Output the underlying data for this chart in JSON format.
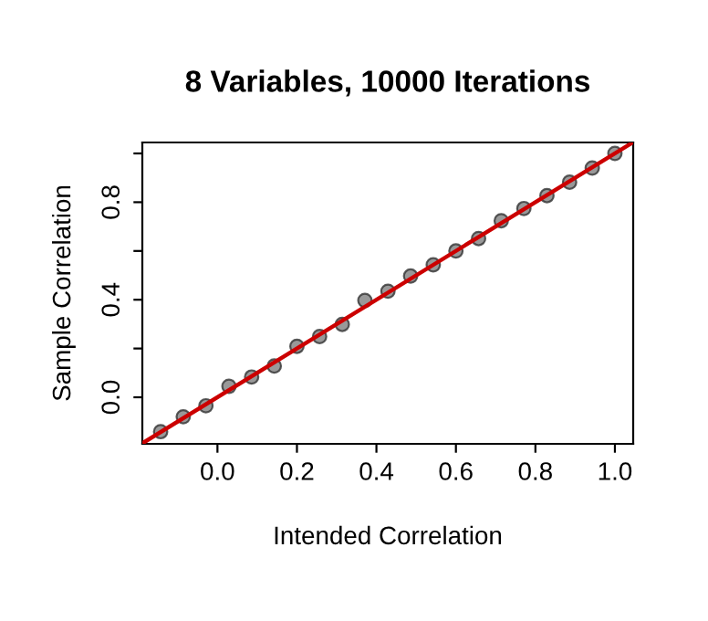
{
  "chart_data": {
    "type": "scatter",
    "title": "8 Variables, 10000 Iterations",
    "xlabel": "Intended Correlation",
    "ylabel": "Sample Correlation",
    "xlim": [
      -0.189,
      1.046
    ],
    "ylim": [
      -0.191,
      1.045
    ],
    "xticks": [
      {
        "value": 0,
        "label": "0.0"
      },
      0.2,
      0.4,
      0.6,
      0.8,
      {
        "value": 1,
        "label": "1.0"
      }
    ],
    "yticks": [
      {
        "value": 0,
        "label": "0.0"
      },
      {
        "value": 0.2,
        "label": null
      },
      0.4,
      {
        "value": 0.6,
        "label": null
      },
      0.8,
      {
        "value": 1.0,
        "label": null
      }
    ],
    "grid": false,
    "legend": false,
    "series": [
      {
        "marker": "circle",
        "color": "#808080",
        "x": [
          -0.143,
          -0.086,
          -0.029,
          0.029,
          0.086,
          0.143,
          0.2,
          0.257,
          0.314,
          0.371,
          0.429,
          0.486,
          0.543,
          0.6,
          0.657,
          0.714,
          0.771,
          0.829,
          0.886,
          0.943,
          1.0
        ],
        "values": [
          -0.141,
          -0.08,
          -0.035,
          0.045,
          0.083,
          0.128,
          0.209,
          0.249,
          0.299,
          0.397,
          0.435,
          0.497,
          0.543,
          0.6,
          0.651,
          0.724,
          0.774,
          0.827,
          0.882,
          0.94,
          1.0
        ]
      },
      {
        "type": "line",
        "marker": "none",
        "color": "#cc0000",
        "x": [
          -0.189,
          1.045
        ],
        "values": [
          -0.189,
          1.045
        ]
      }
    ]
  }
}
